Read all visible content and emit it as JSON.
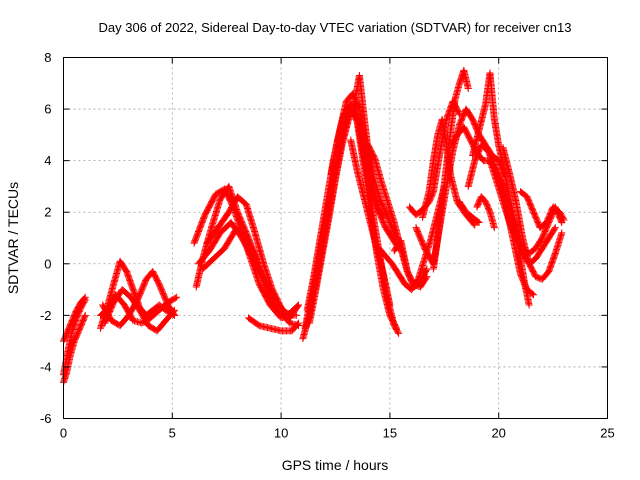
{
  "chart_data": {
    "type": "scatter",
    "title": "Day 306 of 2022, Sidereal Day-to-day VTEC variation (SDTVAR) for receiver cn13",
    "xlabel": "GPS time / hours",
    "ylabel": "SDTVAR / TECUs",
    "xlim": [
      0,
      25
    ],
    "ylim": [
      -6,
      8
    ],
    "xticks": [
      0,
      5,
      10,
      15,
      20,
      25
    ],
    "yticks": [
      -6,
      -4,
      -2,
      0,
      2,
      4,
      6,
      8
    ],
    "grid": true,
    "marker": "plus",
    "color": "#ff0000",
    "tracks": [
      [
        [
          0.0,
          -4.6
        ],
        [
          0.15,
          -4.2
        ],
        [
          0.3,
          -3.6
        ],
        [
          0.5,
          -3.0
        ],
        [
          0.7,
          -2.6
        ],
        [
          0.9,
          -2.2
        ],
        [
          1.0,
          -2.0
        ]
      ],
      [
        [
          0.0,
          -3.0
        ],
        [
          0.2,
          -2.6
        ],
        [
          0.4,
          -2.2
        ],
        [
          0.6,
          -1.8
        ],
        [
          0.8,
          -1.5
        ],
        [
          1.0,
          -1.3
        ]
      ],
      [
        [
          0.0,
          -4.3
        ],
        [
          0.2,
          -3.4
        ],
        [
          0.4,
          -2.6
        ],
        [
          0.6,
          -2.1
        ],
        [
          0.8,
          -1.7
        ],
        [
          1.0,
          -1.4
        ]
      ],
      [
        [
          1.7,
          -2.5
        ],
        [
          2.0,
          -1.7
        ],
        [
          2.3,
          -0.8
        ],
        [
          2.6,
          0.1
        ],
        [
          2.9,
          -0.3
        ],
        [
          3.2,
          -1.0
        ],
        [
          3.5,
          -1.7
        ],
        [
          3.8,
          -2.0
        ],
        [
          4.1,
          -1.8
        ],
        [
          4.4,
          -1.6
        ],
        [
          4.7,
          -1.8
        ],
        [
          5.1,
          -2.0
        ]
      ],
      [
        [
          1.7,
          -2.0
        ],
        [
          2.0,
          -1.8
        ],
        [
          2.4,
          -1.2
        ],
        [
          2.8,
          -1.6
        ],
        [
          3.2,
          -2.2
        ],
        [
          3.6,
          -2.3
        ],
        [
          4.0,
          -2.1
        ],
        [
          4.4,
          -1.8
        ],
        [
          4.8,
          -1.5
        ],
        [
          5.2,
          -1.3
        ]
      ],
      [
        [
          1.8,
          -1.6
        ],
        [
          2.2,
          -2.2
        ],
        [
          2.6,
          -2.4
        ],
        [
          3.0,
          -2.0
        ],
        [
          3.4,
          -1.4
        ],
        [
          3.8,
          -0.6
        ],
        [
          4.1,
          -0.3
        ],
        [
          4.4,
          -0.8
        ],
        [
          4.8,
          -1.6
        ],
        [
          5.1,
          -2.0
        ]
      ],
      [
        [
          1.9,
          -2.3
        ],
        [
          2.3,
          -1.5
        ],
        [
          2.7,
          -1.0
        ],
        [
          3.1,
          -1.3
        ],
        [
          3.5,
          -1.8
        ],
        [
          3.9,
          -2.4
        ],
        [
          4.3,
          -2.6
        ],
        [
          4.7,
          -2.2
        ],
        [
          5.1,
          -1.8
        ]
      ],
      [
        [
          6.1,
          -0.9
        ],
        [
          6.4,
          0.2
        ],
        [
          6.8,
          1.4
        ],
        [
          7.2,
          2.5
        ],
        [
          7.6,
          3.0
        ],
        [
          8.0,
          2.0
        ],
        [
          8.5,
          1.0
        ],
        [
          9.0,
          -0.2
        ],
        [
          9.5,
          -1.2
        ],
        [
          10.0,
          -1.9
        ],
        [
          10.4,
          -2.3
        ],
        [
          10.8,
          -2.4
        ]
      ],
      [
        [
          6.0,
          0.8
        ],
        [
          6.5,
          1.9
        ],
        [
          7.0,
          2.7
        ],
        [
          7.4,
          2.9
        ],
        [
          7.8,
          2.2
        ],
        [
          8.2,
          1.2
        ],
        [
          8.6,
          0.2
        ],
        [
          9.0,
          -0.8
        ],
        [
          9.5,
          -1.6
        ],
        [
          10.0,
          -2.1
        ],
        [
          10.5,
          -2.0
        ]
      ],
      [
        [
          6.2,
          0.0
        ],
        [
          6.7,
          0.5
        ],
        [
          7.2,
          1.2
        ],
        [
          7.7,
          1.6
        ],
        [
          8.2,
          1.0
        ],
        [
          8.7,
          0.2
        ],
        [
          9.2,
          -0.6
        ],
        [
          9.7,
          -1.4
        ],
        [
          10.2,
          -1.9
        ],
        [
          10.7,
          -2.0
        ]
      ],
      [
        [
          6.4,
          -0.2
        ],
        [
          6.9,
          0.2
        ],
        [
          7.4,
          0.6
        ],
        [
          7.9,
          1.3
        ],
        [
          8.3,
          1.2
        ],
        [
          8.7,
          0.5
        ],
        [
          9.1,
          -0.4
        ],
        [
          9.5,
          -1.2
        ],
        [
          9.9,
          -1.8
        ],
        [
          10.3,
          -2.0
        ],
        [
          10.8,
          -1.6
        ]
      ],
      [
        [
          6.6,
          0.8
        ],
        [
          7.1,
          1.4
        ],
        [
          7.6,
          2.0
        ],
        [
          8.0,
          2.6
        ],
        [
          8.4,
          2.3
        ],
        [
          8.8,
          1.2
        ],
        [
          9.2,
          0.0
        ],
        [
          9.6,
          -1.0
        ],
        [
          10.0,
          -1.7
        ],
        [
          10.4,
          -2.1
        ],
        [
          10.8,
          -1.6
        ]
      ],
      [
        [
          8.5,
          -2.1
        ],
        [
          9.0,
          -2.4
        ],
        [
          9.5,
          -2.5
        ],
        [
          10.0,
          -2.6
        ],
        [
          10.5,
          -2.6
        ],
        [
          10.8,
          -2.3
        ]
      ],
      [
        [
          11.0,
          -2.9
        ],
        [
          11.3,
          -2.0
        ],
        [
          11.6,
          -0.8
        ],
        [
          11.9,
          0.6
        ],
        [
          12.2,
          2.0
        ],
        [
          12.5,
          3.4
        ],
        [
          12.8,
          4.8
        ],
        [
          13.1,
          5.8
        ],
        [
          13.4,
          6.2
        ],
        [
          13.7,
          5.0
        ],
        [
          14.0,
          3.2
        ],
        [
          14.3,
          1.5
        ],
        [
          14.6,
          0.0
        ],
        [
          14.9,
          -1.4
        ],
        [
          15.2,
          -2.4
        ],
        [
          15.4,
          -2.7
        ]
      ],
      [
        [
          11.1,
          -2.5
        ],
        [
          11.4,
          -1.2
        ],
        [
          11.7,
          0.2
        ],
        [
          12.0,
          1.5
        ],
        [
          12.3,
          2.9
        ],
        [
          12.6,
          4.2
        ],
        [
          12.9,
          5.3
        ],
        [
          13.2,
          6.0
        ],
        [
          13.5,
          5.5
        ],
        [
          13.8,
          3.8
        ],
        [
          14.1,
          2.0
        ],
        [
          14.4,
          0.4
        ],
        [
          14.7,
          -1.0
        ],
        [
          15.0,
          -2.0
        ],
        [
          15.3,
          -2.5
        ]
      ],
      [
        [
          11.2,
          -1.8
        ],
        [
          11.5,
          -0.5
        ],
        [
          11.8,
          1.0
        ],
        [
          12.1,
          2.5
        ],
        [
          12.4,
          4.0
        ],
        [
          12.7,
          5.2
        ],
        [
          13.0,
          6.3
        ],
        [
          13.3,
          6.6
        ],
        [
          13.6,
          6.0
        ],
        [
          13.9,
          4.6
        ],
        [
          14.2,
          3.2
        ],
        [
          14.5,
          2.0
        ],
        [
          14.8,
          1.4
        ],
        [
          15.1,
          1.0
        ],
        [
          15.4,
          0.6
        ]
      ],
      [
        [
          11.3,
          -2.3
        ],
        [
          11.6,
          -1.0
        ],
        [
          11.9,
          0.4
        ],
        [
          12.2,
          1.8
        ],
        [
          12.5,
          3.3
        ],
        [
          12.8,
          4.6
        ],
        [
          13.1,
          5.6
        ],
        [
          13.4,
          6.4
        ],
        [
          13.6,
          7.3
        ],
        [
          13.8,
          5.8
        ],
        [
          14.0,
          4.4
        ],
        [
          14.3,
          3.2
        ],
        [
          14.6,
          2.4
        ],
        [
          14.9,
          1.8
        ],
        [
          15.3,
          1.0
        ]
      ],
      [
        [
          12.3,
          3.5
        ],
        [
          12.6,
          4.8
        ],
        [
          12.9,
          5.8
        ],
        [
          13.2,
          6.2
        ],
        [
          13.5,
          5.6
        ],
        [
          13.8,
          4.2
        ],
        [
          14.1,
          2.8
        ],
        [
          14.4,
          2.2
        ],
        [
          14.7,
          1.8
        ]
      ],
      [
        [
          13.2,
          4.8
        ],
        [
          13.5,
          3.6
        ],
        [
          13.8,
          2.6
        ],
        [
          14.1,
          1.6
        ],
        [
          14.4,
          0.6
        ],
        [
          14.7,
          -0.4
        ],
        [
          15.0,
          -1.6
        ]
      ],
      [
        [
          14.0,
          4.6
        ],
        [
          14.3,
          4.1
        ],
        [
          14.6,
          3.2
        ],
        [
          14.9,
          2.4
        ],
        [
          15.2,
          1.6
        ],
        [
          15.5,
          0.6
        ],
        [
          15.8,
          -0.3
        ],
        [
          16.1,
          -0.8
        ],
        [
          16.4,
          -0.9
        ],
        [
          16.7,
          -0.5
        ]
      ],
      [
        [
          14.5,
          0.6
        ],
        [
          14.8,
          0.3
        ],
        [
          15.1,
          0.0
        ],
        [
          15.4,
          -0.4
        ],
        [
          15.7,
          -0.8
        ],
        [
          16.0,
          -1.0
        ],
        [
          16.3,
          -0.6
        ],
        [
          16.6,
          0.2
        ],
        [
          16.9,
          1.0
        ],
        [
          17.2,
          2.0
        ],
        [
          17.5,
          3.0
        ]
      ],
      [
        [
          15.2,
          0.5
        ],
        [
          15.5,
          0.9
        ],
        [
          15.8,
          -0.3
        ],
        [
          16.1,
          -0.9
        ],
        [
          16.4,
          -0.7
        ],
        [
          16.7,
          -0.2
        ]
      ],
      [
        [
          15.9,
          2.2
        ],
        [
          16.2,
          1.9
        ],
        [
          16.5,
          2.1
        ],
        [
          16.8,
          2.4
        ],
        [
          17.0,
          2.8
        ],
        [
          17.2,
          3.8
        ],
        [
          17.4,
          4.8
        ],
        [
          17.6,
          5.6
        ],
        [
          17.9,
          6.3
        ],
        [
          18.2,
          5.8
        ]
      ],
      [
        [
          16.5,
          1.8
        ],
        [
          16.8,
          2.8
        ],
        [
          17.0,
          4.0
        ],
        [
          17.2,
          5.0
        ],
        [
          17.4,
          5.6
        ],
        [
          17.6,
          4.6
        ],
        [
          17.8,
          3.4
        ],
        [
          18.1,
          2.4
        ],
        [
          18.5,
          1.9
        ],
        [
          18.9,
          1.5
        ]
      ],
      [
        [
          17.0,
          -0.2
        ],
        [
          17.2,
          1.0
        ],
        [
          17.4,
          2.4
        ],
        [
          17.6,
          3.8
        ],
        [
          17.8,
          5.2
        ],
        [
          18.0,
          6.4
        ],
        [
          18.2,
          7.0
        ],
        [
          18.4,
          7.5
        ],
        [
          18.6,
          6.8
        ]
      ],
      [
        [
          16.2,
          1.4
        ],
        [
          16.6,
          0.6
        ],
        [
          17.0,
          0.0
        ],
        [
          17.3,
          1.5
        ],
        [
          17.6,
          3.0
        ],
        [
          17.9,
          4.4
        ],
        [
          18.2,
          5.4
        ],
        [
          18.5,
          6.0
        ],
        [
          18.8,
          5.6
        ],
        [
          19.1,
          5.0
        ],
        [
          19.4,
          4.6
        ],
        [
          19.7,
          4.2
        ],
        [
          20.0,
          4.0
        ],
        [
          20.3,
          3.4
        ]
      ],
      [
        [
          17.8,
          4.6
        ],
        [
          18.1,
          5.0
        ],
        [
          18.4,
          5.3
        ],
        [
          18.7,
          4.8
        ],
        [
          19.0,
          4.3
        ],
        [
          19.3,
          4.0
        ],
        [
          19.6,
          4.0
        ],
        [
          19.9,
          3.6
        ],
        [
          20.2,
          3.0
        ],
        [
          20.5,
          2.0
        ],
        [
          20.8,
          1.2
        ],
        [
          21.1,
          0.4
        ],
        [
          21.4,
          0.0
        ],
        [
          21.7,
          0.2
        ],
        [
          22.0,
          0.6
        ],
        [
          22.3,
          1.0
        ],
        [
          22.6,
          1.4
        ]
      ],
      [
        [
          18.8,
          4.2
        ],
        [
          19.1,
          5.2
        ],
        [
          19.4,
          6.2
        ],
        [
          19.6,
          7.4
        ],
        [
          19.8,
          5.6
        ],
        [
          20.0,
          4.6
        ],
        [
          20.2,
          3.8
        ],
        [
          20.5,
          2.6
        ],
        [
          20.8,
          1.4
        ],
        [
          21.0,
          0.2
        ],
        [
          21.2,
          -0.8
        ],
        [
          21.4,
          -1.6
        ]
      ],
      [
        [
          18.6,
          3.0
        ],
        [
          18.9,
          4.0
        ],
        [
          19.2,
          4.6
        ],
        [
          19.5,
          4.4
        ],
        [
          19.8,
          3.8
        ],
        [
          20.1,
          3.0
        ],
        [
          20.4,
          2.0
        ],
        [
          20.7,
          0.8
        ],
        [
          21.0,
          -0.4
        ],
        [
          21.3,
          -1.0
        ],
        [
          21.6,
          -1.2
        ]
      ],
      [
        [
          19.6,
          4.0
        ],
        [
          19.9,
          3.2
        ],
        [
          20.2,
          2.4
        ],
        [
          20.5,
          1.6
        ],
        [
          20.8,
          1.0
        ],
        [
          21.1,
          0.6
        ],
        [
          21.4,
          0.4
        ],
        [
          21.7,
          0.6
        ],
        [
          22.0,
          1.0
        ],
        [
          22.3,
          1.6
        ],
        [
          22.6,
          2.2
        ],
        [
          22.9,
          1.6
        ]
      ],
      [
        [
          20.2,
          4.5
        ],
        [
          20.5,
          3.5
        ],
        [
          20.8,
          2.4
        ],
        [
          21.1,
          1.0
        ],
        [
          21.4,
          0.0
        ],
        [
          21.7,
          -0.5
        ],
        [
          22.0,
          -0.6
        ],
        [
          22.3,
          -0.3
        ],
        [
          22.6,
          0.4
        ],
        [
          22.9,
          1.2
        ]
      ],
      [
        [
          21.0,
          2.8
        ],
        [
          21.3,
          2.6
        ],
        [
          21.6,
          2.0
        ],
        [
          21.9,
          1.4
        ],
        [
          22.2,
          1.6
        ],
        [
          22.5,
          2.2
        ],
        [
          22.8,
          2.0
        ],
        [
          23.0,
          1.7
        ]
      ],
      [
        [
          18.2,
          2.4
        ],
        [
          18.5,
          2.0
        ],
        [
          18.8,
          1.8
        ],
        [
          19.1,
          1.6
        ]
      ],
      [
        [
          19.0,
          2.2
        ],
        [
          19.2,
          2.6
        ],
        [
          19.4,
          2.4
        ],
        [
          19.6,
          2.0
        ],
        [
          19.8,
          1.4
        ]
      ]
    ]
  }
}
